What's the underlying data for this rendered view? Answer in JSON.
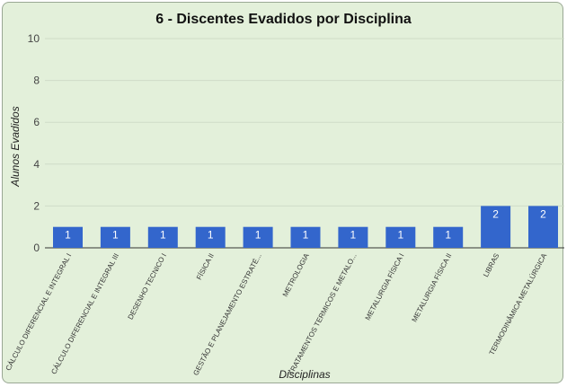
{
  "chart_data": {
    "type": "bar",
    "title": "6 - Discentes Evadidos por Disciplina",
    "xlabel": "Disciplinas",
    "ylabel": "Alunos Evadidos",
    "ylim": [
      0,
      10
    ],
    "yticks": [
      0,
      2,
      4,
      6,
      8,
      10
    ],
    "grid": true,
    "categories": [
      "CÁLCULO DIFERENCIAL E INTEGRAL I",
      "CÁLCULO DIFERENCIAL E INTEGRAL III",
      "DESENHO TECNICO I",
      "FÍSICA II",
      "GESTÃO E PLANEJAMENTO ESTRATÉ...",
      "METROLOGIA",
      "TRATAMENTOS TERMICOS E METALO...",
      "METALURGIA FÍSICA I",
      "METALURGIA FÍSICA II",
      "LIBRAS",
      "TERMODINÂMICA METALÚRGICA"
    ],
    "values": [
      1,
      1,
      1,
      1,
      1,
      1,
      1,
      1,
      1,
      2,
      2
    ],
    "bar_color": "#3366cc"
  }
}
